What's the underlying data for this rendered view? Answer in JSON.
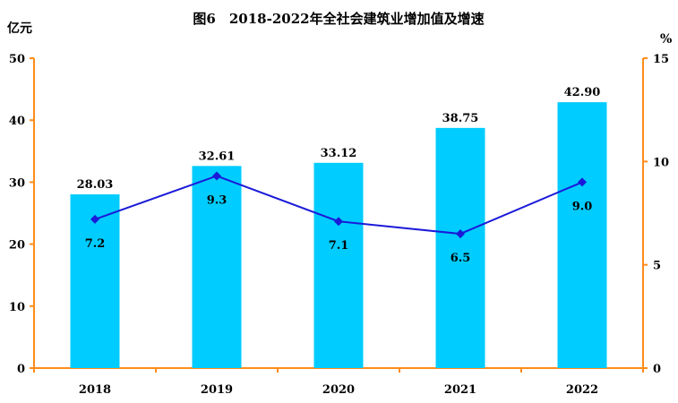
{
  "chart_data": {
    "type": "bar",
    "title": "图6　2018-2022年全社会建筑业增加值及增速",
    "categories": [
      "2018",
      "2019",
      "2020",
      "2021",
      "2022"
    ],
    "series": [
      {
        "name": "建筑业增加值",
        "type": "bar",
        "axis": "left",
        "unit": "亿元",
        "values": [
          28.03,
          32.61,
          33.12,
          38.75,
          42.9
        ],
        "labels": [
          "28.03",
          "32.61",
          "33.12",
          "38.75",
          "42.90"
        ]
      },
      {
        "name": "增速",
        "type": "line",
        "axis": "right",
        "unit": "%",
        "values": [
          7.2,
          9.3,
          7.1,
          6.5,
          9.0
        ],
        "labels": [
          "7.2",
          "9.3",
          "7.1",
          "6.5",
          "9.0"
        ]
      }
    ],
    "ylabel_left": "亿元",
    "ylabel_right": "%",
    "ylim_left": [
      0,
      50
    ],
    "ylim_right": [
      0,
      15
    ],
    "yticks_left": [
      "0",
      "10",
      "20",
      "30",
      "40",
      "50"
    ],
    "yticks_right": [
      "0",
      "5",
      "10",
      "15"
    ],
    "grid": false,
    "colors": {
      "bar": "#00ccff",
      "line": "#1a1ad9",
      "axis": "#ff8c1a",
      "text": "#000000"
    }
  }
}
